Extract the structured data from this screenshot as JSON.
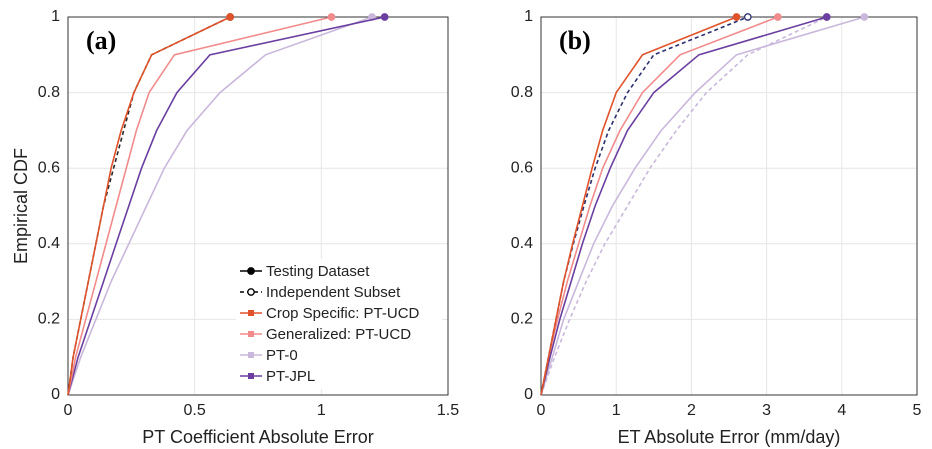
{
  "chart_data": [
    {
      "type": "line",
      "panel_label": "(a)",
      "xlabel": "PT Coefficient Absolute Error",
      "ylabel": "Empirical CDF",
      "xlim": [
        0,
        1.5
      ],
      "xticks": [
        0,
        0.5,
        1,
        1.5
      ],
      "ylim": [
        0,
        1
      ],
      "yticks": [
        0,
        0.2,
        0.4,
        0.6,
        0.8,
        1
      ],
      "grid": true,
      "legend": [
        {
          "label": "Testing Dataset",
          "color": "#000000",
          "dash": false,
          "marker": "filled"
        },
        {
          "label": "Independent Subset",
          "color": "#000000",
          "dash": true,
          "marker": "open"
        },
        {
          "label": "Crop Specific: PT-UCD",
          "color": "#e0522a",
          "dash": false,
          "marker": "square"
        },
        {
          "label": "Generalized: PT-UCD",
          "color": "#f28b8b",
          "dash": false,
          "marker": "square"
        },
        {
          "label": "PT-0",
          "color": "#c9b8dc",
          "dash": false,
          "marker": "square"
        },
        {
          "label": "PT-JPL",
          "color": "#6a3fa0",
          "dash": false,
          "marker": "square"
        }
      ],
      "series": [
        {
          "color": "#c9b8dc",
          "dash": false,
          "x": [
            0,
            0.05,
            0.11,
            0.17,
            0.24,
            0.31,
            0.38,
            0.47,
            0.6,
            0.78,
            1.2
          ],
          "values": [
            0,
            0.1,
            0.2,
            0.3,
            0.4,
            0.5,
            0.6,
            0.7,
            0.8,
            0.9,
            1
          ]
        },
        {
          "color": "#6a3fa0",
          "dash": false,
          "x": [
            0,
            0.04,
            0.09,
            0.14,
            0.19,
            0.24,
            0.29,
            0.35,
            0.43,
            0.56,
            1.25
          ],
          "values": [
            0,
            0.1,
            0.2,
            0.3,
            0.4,
            0.5,
            0.6,
            0.7,
            0.8,
            0.9,
            1
          ]
        },
        {
          "color": "#f28b8b",
          "dash": false,
          "x": [
            0,
            0.03,
            0.07,
            0.11,
            0.15,
            0.19,
            0.23,
            0.27,
            0.32,
            0.42,
            1.04
          ],
          "values": [
            0,
            0.1,
            0.2,
            0.3,
            0.4,
            0.5,
            0.6,
            0.7,
            0.8,
            0.9,
            1
          ]
        },
        {
          "color": "#2a2a2a",
          "dash": true,
          "x": [
            0,
            0.02,
            0.05,
            0.08,
            0.11,
            0.14,
            0.18,
            0.22,
            0.26,
            0.33,
            0.64
          ],
          "values": [
            0,
            0.1,
            0.2,
            0.3,
            0.4,
            0.5,
            0.6,
            0.7,
            0.8,
            0.9,
            1
          ]
        },
        {
          "color": "#e0522a",
          "dash": false,
          "x": [
            0,
            0.02,
            0.05,
            0.08,
            0.11,
            0.14,
            0.17,
            0.21,
            0.26,
            0.33,
            0.64
          ],
          "values": [
            0,
            0.1,
            0.2,
            0.3,
            0.4,
            0.5,
            0.6,
            0.7,
            0.8,
            0.9,
            1
          ]
        }
      ]
    },
    {
      "type": "line",
      "panel_label": "(b)",
      "xlabel": "ET Absolute Error (mm/day)",
      "xlim": [
        0,
        5
      ],
      "xticks": [
        0,
        1,
        2,
        3,
        4,
        5
      ],
      "ylim": [
        0,
        1
      ],
      "yticks": [
        0,
        0.2,
        0.4,
        0.6,
        0.8,
        1
      ],
      "grid": true,
      "series": [
        {
          "color": "#c9b8dc",
          "dash": false,
          "x": [
            0,
            0.15,
            0.3,
            0.5,
            0.7,
            0.95,
            1.25,
            1.6,
            2.05,
            2.6,
            4.3
          ],
          "values": [
            0,
            0.1,
            0.2,
            0.3,
            0.4,
            0.5,
            0.6,
            0.7,
            0.8,
            0.9,
            1
          ]
        },
        {
          "color": "#c9b8dc",
          "dash": true,
          "x": [
            0,
            0.18,
            0.38,
            0.6,
            0.85,
            1.15,
            1.45,
            1.8,
            2.2,
            2.75,
            3.8
          ],
          "values": [
            0,
            0.1,
            0.2,
            0.3,
            0.4,
            0.5,
            0.6,
            0.7,
            0.8,
            0.9,
            1
          ]
        },
        {
          "color": "#6a3fa0",
          "dash": false,
          "x": [
            0,
            0.12,
            0.25,
            0.4,
            0.55,
            0.72,
            0.92,
            1.15,
            1.5,
            2.1,
            3.8
          ],
          "values": [
            0,
            0.1,
            0.2,
            0.3,
            0.4,
            0.5,
            0.6,
            0.7,
            0.8,
            0.9,
            1
          ]
        },
        {
          "color": "#f28b8b",
          "dash": false,
          "x": [
            0,
            0.1,
            0.22,
            0.35,
            0.5,
            0.65,
            0.82,
            1.05,
            1.35,
            1.85,
            3.15
          ],
          "values": [
            0,
            0.1,
            0.2,
            0.3,
            0.4,
            0.5,
            0.6,
            0.7,
            0.8,
            0.9,
            1
          ]
        },
        {
          "color": "#2b2f6e",
          "dash": true,
          "x": [
            0,
            0.1,
            0.2,
            0.3,
            0.43,
            0.57,
            0.72,
            0.9,
            1.15,
            1.5,
            2.75
          ],
          "values": [
            0,
            0.1,
            0.2,
            0.3,
            0.4,
            0.5,
            0.6,
            0.7,
            0.8,
            0.9,
            1
          ]
        },
        {
          "color": "#e0522a",
          "dash": false,
          "x": [
            0,
            0.1,
            0.2,
            0.3,
            0.42,
            0.55,
            0.68,
            0.82,
            1.0,
            1.35,
            2.6
          ],
          "values": [
            0,
            0.1,
            0.2,
            0.3,
            0.4,
            0.5,
            0.6,
            0.7,
            0.8,
            0.9,
            1
          ]
        }
      ]
    }
  ]
}
